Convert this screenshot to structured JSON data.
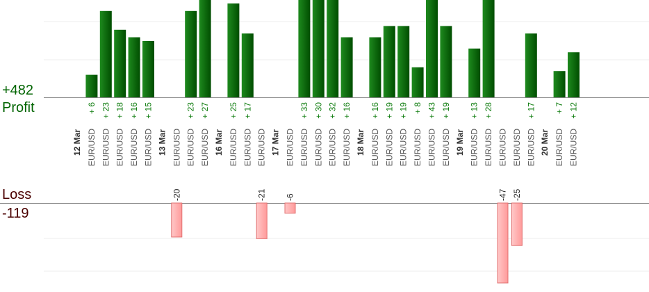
{
  "summary": {
    "profit_value": "+482",
    "profit_label": "Profit",
    "loss_label": "Loss",
    "loss_value": "-119",
    "profit_color": "#006400",
    "loss_color": "#4a0000"
  },
  "chart_data": {
    "type": "bar",
    "grid": true,
    "legend": "none",
    "colors": {
      "profit": "#006400",
      "loss": "#ffb0b0",
      "profit_label": "#0a7a0a"
    },
    "profit_ylim": [
      0,
      25
    ],
    "loss_ylim": [
      -120,
      0
    ],
    "groups": [
      {
        "date": "12 Mar",
        "trades": [
          {
            "pair": "EUR/USD",
            "value": 6
          },
          {
            "pair": "EUR/USD",
            "value": 23
          },
          {
            "pair": "EUR/USD",
            "value": 18
          },
          {
            "pair": "EUR/USD",
            "value": 16
          },
          {
            "pair": "EUR/USD",
            "value": 15
          }
        ]
      },
      {
        "date": "13 Mar",
        "trades": [
          {
            "pair": "EUR/USD",
            "value": -20
          },
          {
            "pair": "EUR/USD",
            "value": 23
          },
          {
            "pair": "EUR/USD",
            "value": 27
          }
        ]
      },
      {
        "date": "16 Mar",
        "trades": [
          {
            "pair": "EUR/USD",
            "value": 25
          },
          {
            "pair": "EUR/USD",
            "value": 17
          },
          {
            "pair": "EUR/USD",
            "value": -21
          }
        ]
      },
      {
        "date": "17 Mar",
        "trades": [
          {
            "pair": "EUR/USD",
            "value": -6
          },
          {
            "pair": "EUR/USD",
            "value": 33
          },
          {
            "pair": "EUR/USD",
            "value": 30
          },
          {
            "pair": "EUR/USD",
            "value": 32
          },
          {
            "pair": "EUR/USD",
            "value": 16
          }
        ]
      },
      {
        "date": "18 Mar",
        "trades": [
          {
            "pair": "EUR/USD",
            "value": 16
          },
          {
            "pair": "EUR/USD",
            "value": 19
          },
          {
            "pair": "EUR/USD",
            "value": 19
          },
          {
            "pair": "EUR/USD",
            "value": 8
          },
          {
            "pair": "EUR/USD",
            "value": 43
          },
          {
            "pair": "EUR/USD",
            "value": 19
          }
        ]
      },
      {
        "date": "19 Mar",
        "trades": [
          {
            "pair": "EUR/USD",
            "value": 13
          },
          {
            "pair": "EUR/USD",
            "value": 28
          },
          {
            "pair": "EUR/USD",
            "value": -47
          },
          {
            "pair": "EUR/USD",
            "value": -25
          },
          {
            "pair": "EUR/USD",
            "value": 17
          }
        ]
      },
      {
        "date": "20 Mar",
        "trades": [
          {
            "pair": "EUR/USD",
            "value": 7
          },
          {
            "pair": "EUR/USD",
            "value": 12
          }
        ]
      }
    ]
  }
}
